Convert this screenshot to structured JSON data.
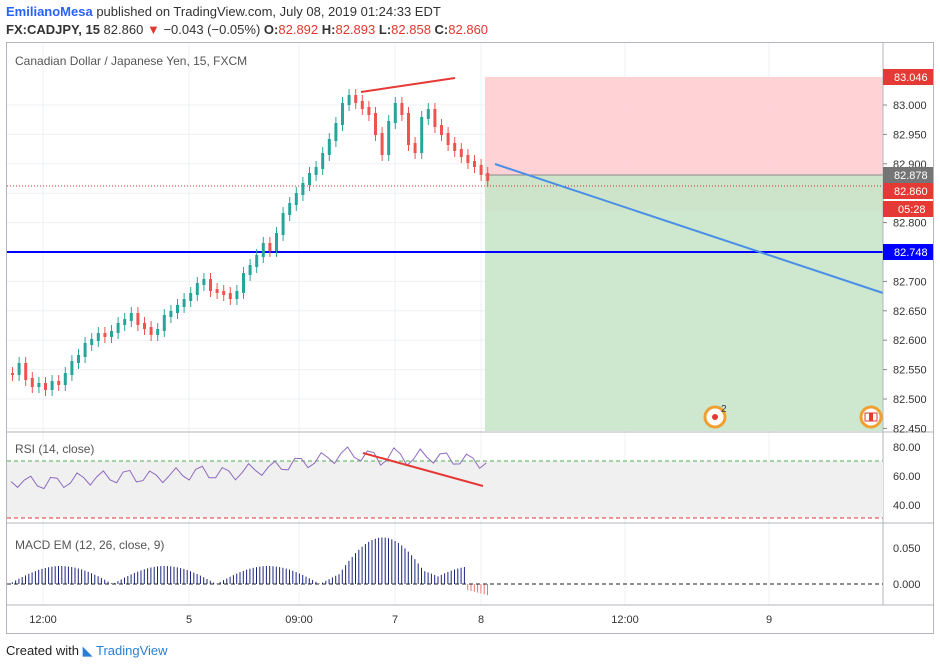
{
  "header": {
    "user": "EmilianoMesa",
    "published": "published on TradingView.com, July 08, 2019 01:24:33 EDT",
    "symbol": "FX:CADJPY, 15",
    "last": "82.860",
    "change_arrow": "▼",
    "change": "−0.043 (−0.05%)",
    "o_label": "O:",
    "o_val": "82.892",
    "h_label": "H:",
    "h_val": "82.893",
    "l_label": "L:",
    "l_val": "82.858",
    "c_label": "C:",
    "c_val": "82.860"
  },
  "main_pane": {
    "legend": "Canadian Dollar / Japanese Yen, 15, FXCM",
    "price_ticks": [
      "83.000",
      "82.950",
      "82.900",
      "82.850",
      "82.800",
      "82.750",
      "82.700",
      "82.650",
      "82.600",
      "82.550",
      "82.500",
      "82.450"
    ],
    "badges": {
      "stop": "83.046",
      "entry": "82.878",
      "last": "82.860",
      "countdown": "05:28",
      "support": "82.748"
    },
    "event_count": "2",
    "event_icon": "economic-event-icon",
    "flag_icon": "canada-flag-icon",
    "colors": {
      "up": "#26a69a",
      "down": "#ef5350",
      "risk_zone": "#ffcdd2",
      "reward_zone": "#c8e6c9",
      "support_line": "#0000ff",
      "trend_line": "#4a8fe7"
    }
  },
  "rsi_pane": {
    "legend": "RSI (14, close)",
    "ticks": [
      "80.00",
      "60.00",
      "40.00"
    ]
  },
  "macd_pane": {
    "legend": "MACD EM (12, 26, close, 9)",
    "ticks": [
      "0.050",
      "0.000"
    ]
  },
  "time_axis": [
    "12:00",
    "5",
    "09:00",
    "7",
    "8",
    "12:00",
    "9"
  ],
  "footer": {
    "created": "Created with",
    "brand": "TradingView"
  }
}
